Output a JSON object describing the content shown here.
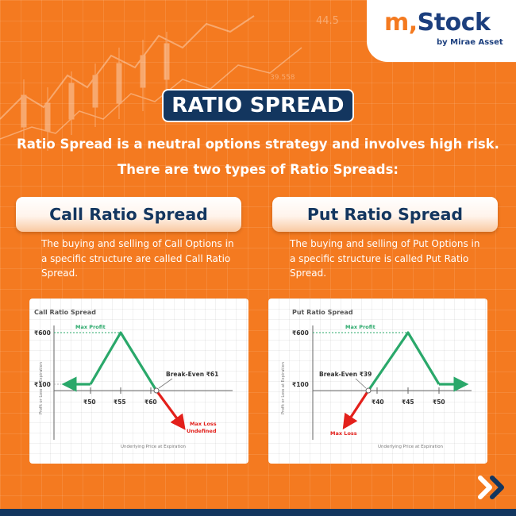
{
  "brand": {
    "logo_m": "m",
    "logo_comma": ",",
    "logo_stock": "Stock",
    "tagline": "by Mirae Asset"
  },
  "background_numbers": [
    "44.5",
    "39.558"
  ],
  "title": "RATIO SPREAD",
  "intro": {
    "line1": "Ratio Spread is a neutral options strategy and involves high risk.",
    "line2": "There are two types of Ratio Spreads:"
  },
  "call": {
    "heading": "Call Ratio Spread",
    "description": "The buying and selling of Call Options in a specific structure are called Call Ratio Spread.",
    "chart": {
      "title": "Call Ratio Spread",
      "y_axis_label": "Profit or Loss at Expiration",
      "x_axis_label": "Underlying Price at Expiration",
      "y_ticks": [
        "₹600",
        "₹100"
      ],
      "x_ticks": [
        "₹50",
        "₹55",
        "₹60"
      ],
      "max_profit": "Max Profit",
      "break_even": "Break-Even ₹61",
      "max_loss_line1": "Max Loss",
      "max_loss_line2": "Undefined"
    }
  },
  "put": {
    "heading": "Put Ratio Spread",
    "description": "The buying and selling of Put Options in a specific structure is called Put Ratio Spread.",
    "chart": {
      "title": "Put Ratio Spread",
      "y_axis_label": "Profit or Loss at Expiration",
      "x_axis_label": "Underlying Price at Expiration",
      "y_ticks": [
        "₹600",
        "₹100"
      ],
      "x_ticks": [
        "₹40",
        "₹45",
        "₹50"
      ],
      "max_profit": "Max Profit",
      "break_even": "Break-Even ₹39",
      "max_loss": "Max Loss"
    }
  },
  "colors": {
    "background": "#f47a20",
    "navy": "#13365f",
    "profit_green": "#2aa86a",
    "loss_red": "#e3201b"
  },
  "icons": {
    "next": "double-chevron-right-icon"
  }
}
